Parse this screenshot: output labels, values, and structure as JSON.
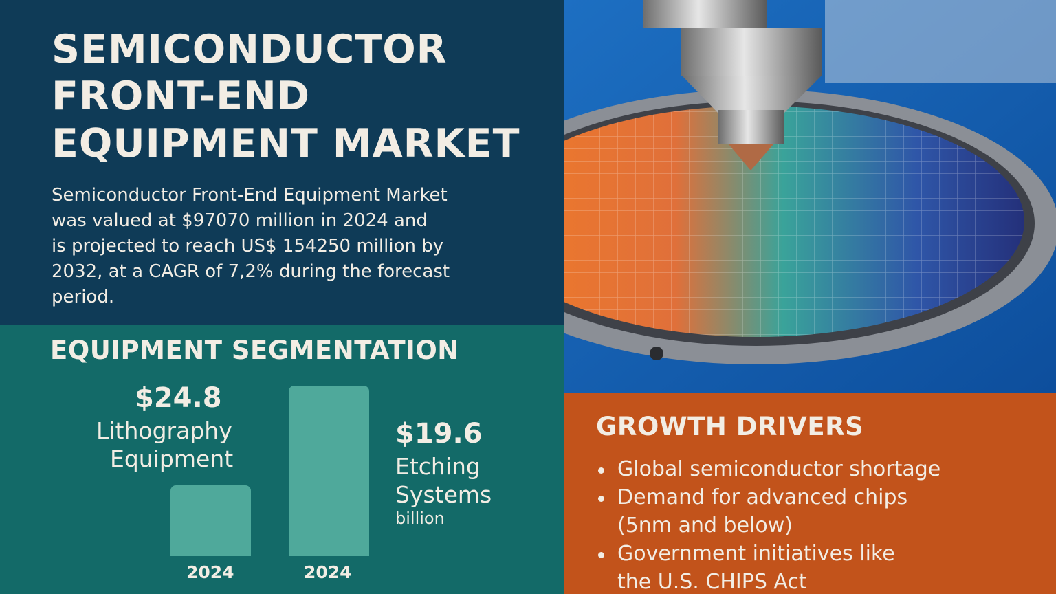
{
  "header": {
    "title_lines": [
      "SEMICONDUCTOR",
      "FRONT-END",
      "EQUIPMENT MARKET"
    ],
    "description_lines": [
      "Semiconductor Front-End Equipment Market",
      "was valued at $97070 million in 2024 and",
      "is projected to reach US$ 154250 million by",
      "2032, at a CAGR of 7,2% during the forecast",
      "period."
    ]
  },
  "segmentation": {
    "title": "EQUIPMENT SEGMENTATION",
    "items": [
      {
        "value": "$24.8",
        "label_lines": [
          "Lithography",
          "Equipment"
        ],
        "year": "2024"
      },
      {
        "value": "$19.6",
        "label_lines": [
          "Etching",
          "Systems"
        ],
        "unit": "billion",
        "year": "2024"
      }
    ]
  },
  "growth_drivers": {
    "title": "GROWTH DRIVERS",
    "items": [
      [
        "Global semiconductor shortage"
      ],
      [
        "Demand for advanced chips",
        "(5nm and below)"
      ],
      [
        "Government initiatives like",
        "the U.S. CHIPS Act"
      ]
    ]
  }
}
